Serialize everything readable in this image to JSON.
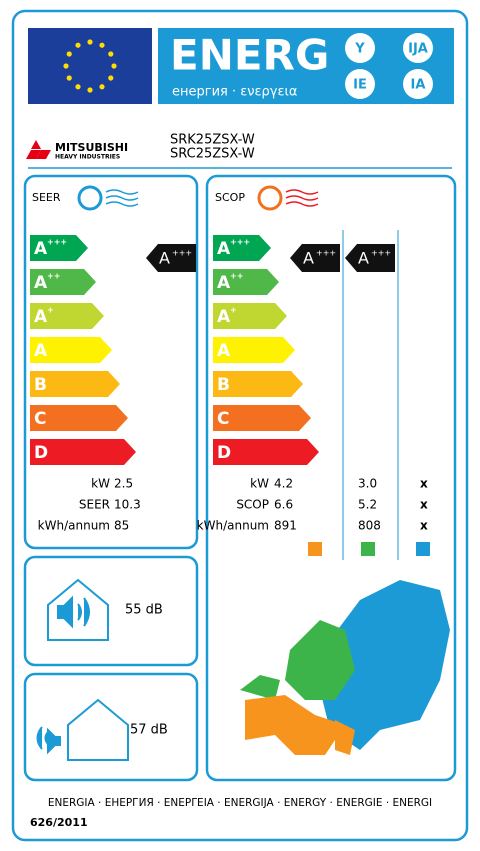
{
  "header": {
    "energy": "ENERG",
    "subtitle": "енергия · ενεργεια",
    "letters": [
      "Y",
      "IJA",
      "IE",
      "IA"
    ]
  },
  "supplier": {
    "name": "MITSUBISHI",
    "sub": "HEAVY INDUSTRIES",
    "models": [
      "SRK25ZSX-W",
      "SRC25ZSX-W"
    ]
  },
  "classes": [
    {
      "letter": "A",
      "sup": "+++",
      "color": "#00a651"
    },
    {
      "letter": "A",
      "sup": "++",
      "color": "#50b848"
    },
    {
      "letter": "A",
      "sup": "+",
      "color": "#bfd730"
    },
    {
      "letter": "A",
      "sup": null,
      "color": "#fff200"
    },
    {
      "letter": "B",
      "sup": null,
      "color": "#fdb913"
    },
    {
      "letter": "C",
      "sup": null,
      "color": "#f37021"
    },
    {
      "letter": "D",
      "sup": null,
      "color": "#ed1c24"
    }
  ],
  "cooling": {
    "label": "SEER",
    "rating": {
      "letter": "A",
      "sup": "+++"
    },
    "specs": [
      {
        "label": "kW",
        "value": "2.5"
      },
      {
        "label": "SEER",
        "value": "10.3"
      },
      {
        "label": "kWh/annum",
        "value": "85"
      }
    ]
  },
  "heating": {
    "label": "SCOP",
    "ratings": [
      {
        "letter": "A",
        "sup": "+++"
      },
      {
        "letter": "A",
        "sup": "+++"
      }
    ],
    "specs": [
      {
        "label": "kW",
        "values": [
          "4.2",
          "3.0",
          "x"
        ]
      },
      {
        "label": "SCOP",
        "values": [
          "6.6",
          "5.2",
          "x"
        ]
      },
      {
        "label": "kWh/annum",
        "values": [
          "891",
          "808",
          "x"
        ]
      }
    ],
    "zone_colors": [
      "#f7941d",
      "#3cb44a",
      "#1c9ad6"
    ]
  },
  "noise": {
    "indoor": "55 dB",
    "outdoor": "57 dB"
  },
  "footer": {
    "languages": "ENERGIA · ЕНЕРГИЯ · ΕΝΕΡΓΕΙΑ · ENERGIJA · ENERGY · ENERGIE · ENERGI",
    "regulation": "626/2011"
  }
}
